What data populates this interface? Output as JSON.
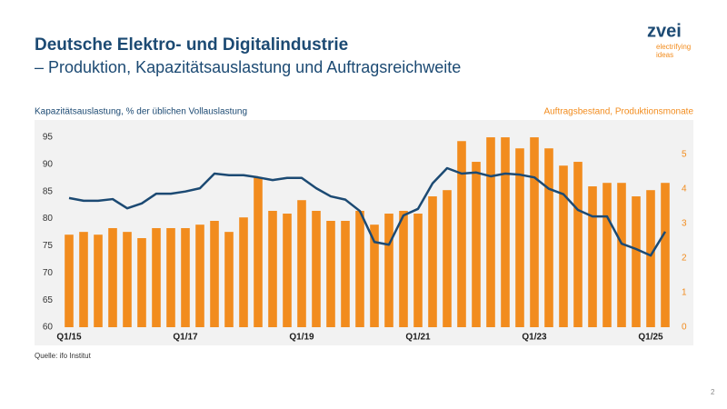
{
  "header": {
    "title": "Deutsche Elektro- und Digitalindustrie",
    "subtitle": "– Produktion, Kapazitätsauslastung und Auftragsreichweite"
  },
  "logo": {
    "name": "zvei",
    "tagline": [
      "electrifying",
      "ideas"
    ]
  },
  "chart_data": {
    "type": "combo",
    "ylabel": "Kapazitätsauslastung, % der üblichen Vollauslastung",
    "y2label": "Auftragsbestand, Produktionsmonate",
    "categories": [
      "Q1/15",
      null,
      null,
      null,
      null,
      null,
      null,
      null,
      "Q1/17",
      null,
      null,
      null,
      null,
      null,
      null,
      null,
      "Q1/19",
      null,
      null,
      null,
      null,
      null,
      null,
      null,
      "Q1/21",
      null,
      null,
      null,
      null,
      null,
      null,
      null,
      "Q1/23",
      null,
      null,
      null,
      null,
      null,
      null,
      null,
      "Q1/25",
      null
    ],
    "series": [
      {
        "type": "bar",
        "axis": "y2",
        "color": "#f28c1e",
        "values": [
          2.68,
          2.76,
          2.68,
          2.87,
          2.76,
          2.58,
          2.87,
          2.87,
          2.87,
          2.97,
          3.08,
          2.76,
          3.18,
          4.34,
          3.37,
          3.29,
          3.68,
          3.37,
          3.08,
          3.08,
          3.37,
          2.97,
          3.29,
          3.37,
          3.29,
          3.79,
          3.97,
          5.39,
          4.79,
          5.5,
          5.5,
          5.18,
          5.5,
          5.18,
          4.68,
          4.79,
          4.08,
          4.18,
          4.18,
          3.79,
          3.97,
          4.18
        ]
      },
      {
        "type": "line",
        "axis": "y",
        "color": "#1c4a73",
        "values": [
          83.8,
          83.3,
          83.3,
          83.6,
          81.9,
          82.8,
          84.6,
          84.6,
          85.0,
          85.6,
          88.3,
          88.0,
          88.0,
          87.6,
          87.1,
          87.5,
          87.5,
          85.6,
          84.1,
          83.5,
          81.4,
          75.7,
          75.2,
          80.6,
          81.8,
          86.5,
          89.3,
          88.3,
          88.5,
          87.8,
          88.3,
          88.1,
          87.6,
          85.5,
          84.5,
          81.6,
          80.4,
          80.4,
          75.4,
          74.4,
          73.2,
          77.6
        ]
      }
    ],
    "ylim": [
      60,
      96
    ],
    "yticks": [
      60,
      65,
      70,
      75,
      80,
      85,
      90,
      95
    ],
    "y2lim": [
      0,
      5.66
    ],
    "y2ticks": [
      0,
      1,
      2,
      3,
      4,
      5
    ]
  },
  "footer": {
    "source": "Quelle: ifo Institut",
    "page_number": "2"
  }
}
